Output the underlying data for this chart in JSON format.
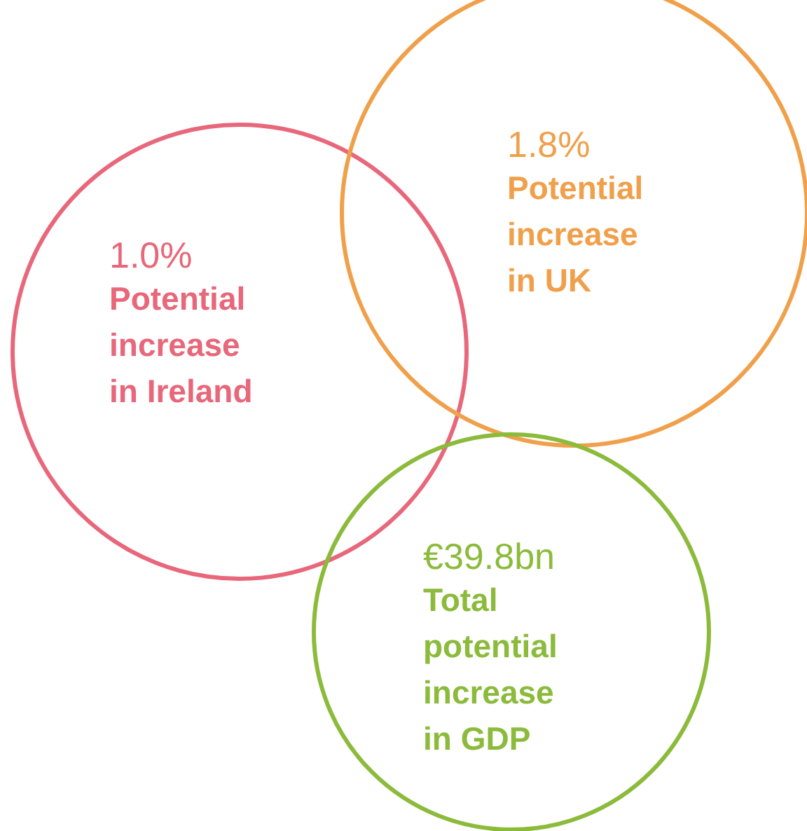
{
  "chart_data": {
    "type": "other",
    "categories": [
      "Potential increase in Ireland",
      "Potential increase in UK",
      "Total potential increase in GDP"
    ],
    "values": [
      1.0,
      1.8,
      39.8
    ],
    "value_labels": [
      "1.0%",
      "1.8%",
      "€39.8bn"
    ],
    "colors": [
      "#e8677a",
      "#f0a04b",
      "#8cbb3c"
    ]
  }
}
